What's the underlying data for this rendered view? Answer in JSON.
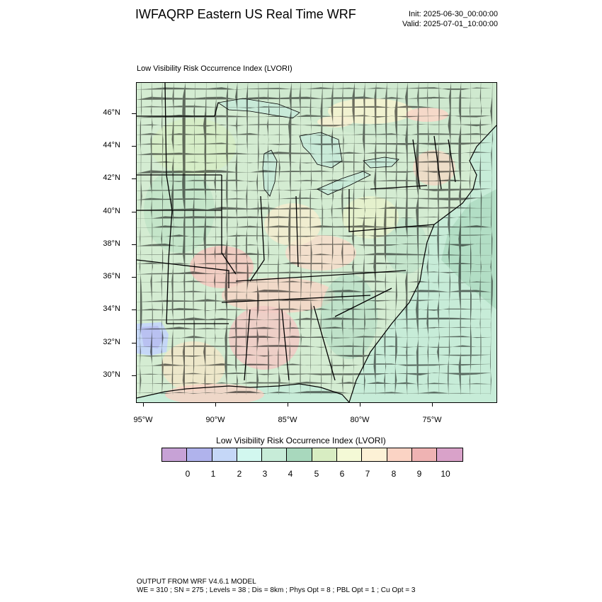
{
  "header": {
    "title": "IWFAQRP Eastern US Real Time WRF",
    "init": "Init: 2025-06-30_00:00:00",
    "valid": "Valid: 2025-07-01_10:00:00"
  },
  "map": {
    "subtitle": "Low Visibility Risk Occurrence Index   (LVORI)",
    "lat_labels": [
      "46°N",
      "44°N",
      "42°N",
      "40°N",
      "38°N",
      "36°N",
      "34°N",
      "32°N",
      "30°N"
    ],
    "lon_labels": [
      "95°W",
      "90°W",
      "85°W",
      "80°W",
      "75°W"
    ],
    "colors": {
      "land_default": "#cfead6",
      "ocean": "#c7ecd8",
      "lake": "#c8ead8",
      "canada": "#cdebd8"
    }
  },
  "legend": {
    "title": "Low Visibility Risk Occurrence Index  (LVORI)",
    "colors": [
      "#c7a2d6",
      "#b0b3ec",
      "#c5d7f7",
      "#d2f7ef",
      "#c7ecd8",
      "#a8d8bd",
      "#d8edc2",
      "#f4f9d6",
      "#fdf1d6",
      "#fbd3c4",
      "#efb3b3",
      "#d9a2c9"
    ],
    "labels": [
      "0",
      "1",
      "2",
      "3",
      "4",
      "5",
      "6",
      "7",
      "8",
      "9",
      "10"
    ]
  },
  "footer": {
    "line1": "OUTPUT FROM WRF V4.6.1 MODEL",
    "line2": "WE = 310 ; SN = 275 ; Levels = 38 ; Dis = 8km ; Phys Opt = 8 ; PBL Opt = 1 ; Cu Opt = 3"
  }
}
